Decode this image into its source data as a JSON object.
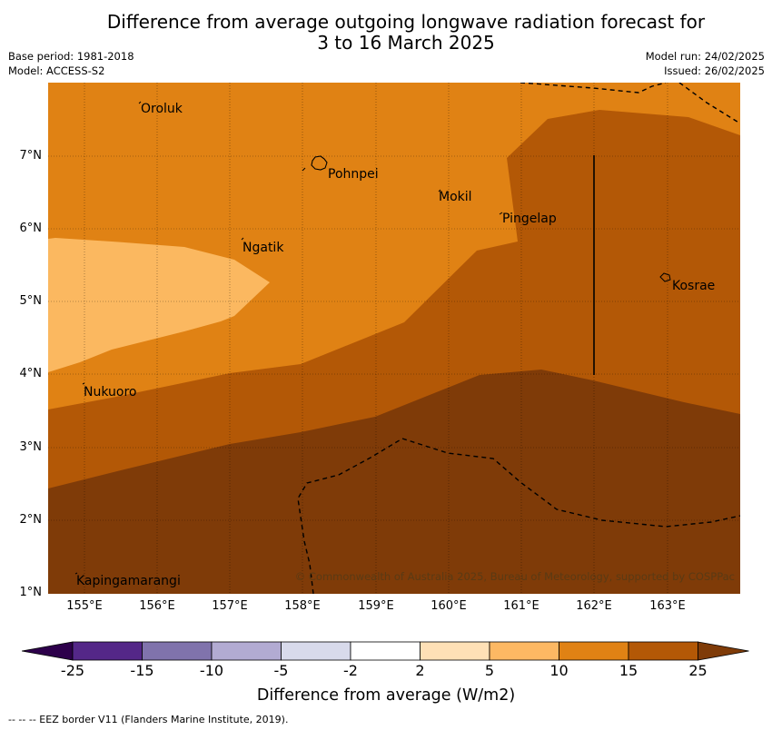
{
  "title": {
    "line1": "Difference from average outgoing longwave radiation forecast for",
    "line2": "3 to 16 March 2025"
  },
  "meta": {
    "base_period": "Base period: 1981-2018",
    "model": "Model: ACCESS-S2",
    "model_run": "Model run: 24/02/2025",
    "issued": "Issued: 26/02/2025"
  },
  "map": {
    "lon_range": [
      154.5,
      164.0
    ],
    "lat_range": [
      1.0,
      8.0
    ],
    "grid": true,
    "lon_labels": [
      "155°E",
      "156°E",
      "157°E",
      "158°E",
      "159°E",
      "160°E",
      "161°E",
      "162°E",
      "163°E"
    ],
    "lat_labels": [
      "7°N",
      "6°N",
      "5°N",
      "4°N",
      "3°N",
      "2°N",
      "1°N"
    ],
    "places": [
      {
        "name": "Oroluk"
      },
      {
        "name": "Pohnpei"
      },
      {
        "name": "Mokil"
      },
      {
        "name": "Pingelap"
      },
      {
        "name": "Ngatik"
      },
      {
        "name": "Kosrae"
      },
      {
        "name": "Nukuoro"
      },
      {
        "name": "Kapingamarangi"
      }
    ],
    "copyright": "© Commonwealth of Australia 2025, Bureau of Meteorology, supported by COSPPac",
    "colors": {
      "band_5_10": "#fbb860",
      "band_10_15": "#e08214",
      "band_15_25": "#b35806",
      "band_above_25": "#7f3b08",
      "eez_line": "#000000"
    }
  },
  "colorbar": {
    "title": "Difference from average (W/m2)",
    "ticks": [
      "-25",
      "-15",
      "-10",
      "-5",
      "-2",
      "2",
      "5",
      "10",
      "15",
      "25"
    ],
    "colors": [
      "#2d004b",
      "#542788",
      "#8073ac",
      "#b2abd2",
      "#d8daeb",
      "#ffffff",
      "#fee0b6",
      "#fdb863",
      "#e08214",
      "#b35806",
      "#7f3b08"
    ]
  },
  "footnote": "--  --  -- EEZ border V11 (Flanders Marine Institute, 2019)."
}
